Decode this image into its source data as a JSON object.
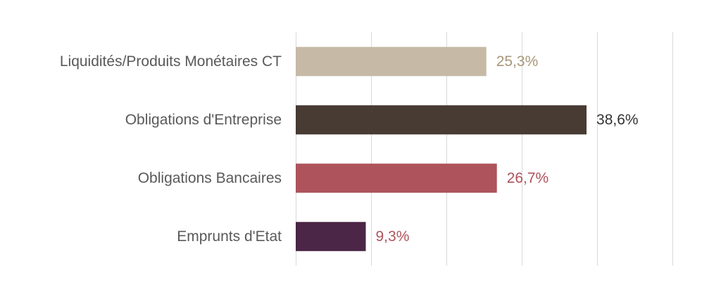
{
  "chart_data": {
    "type": "bar",
    "orientation": "horizontal",
    "categories": [
      "Liquidités/Produits Monétaires CT",
      "Obligations d'Entreprise",
      "Obligations Bancaires",
      "Emprunts d'Etat"
    ],
    "values": [
      25.3,
      38.6,
      26.7,
      9.3
    ],
    "value_labels": [
      "25,3%",
      "38,6%",
      "26,7%",
      "9,3%"
    ],
    "bar_colors": [
      "#c6b9a6",
      "#483b33",
      "#ae535c",
      "#4b2646"
    ],
    "label_colors": [
      "#a89678",
      "#333333",
      "#ae535c",
      "#ae535c"
    ],
    "xlim": [
      0,
      50
    ],
    "grid": true,
    "legend": "none"
  }
}
